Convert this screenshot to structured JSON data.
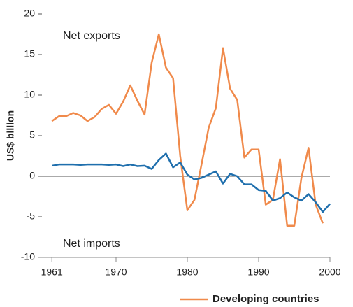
{
  "chart_data": {
    "type": "line",
    "annotations": [
      "Net exports",
      "Net imports"
    ],
    "ylabel": "US$ billion",
    "x": [
      1961,
      1962,
      1963,
      1964,
      1965,
      1966,
      1967,
      1968,
      1969,
      1970,
      1971,
      1972,
      1973,
      1974,
      1975,
      1976,
      1977,
      1978,
      1979,
      1980,
      1981,
      1982,
      1983,
      1984,
      1985,
      1986,
      1987,
      1988,
      1989,
      1990,
      1991,
      1992,
      1993,
      1994,
      1995,
      1996,
      1997,
      1998,
      1999,
      2000
    ],
    "series": [
      {
        "name": "Developing countries",
        "color": "#f08a4b",
        "values": [
          6.8,
          7.4,
          7.4,
          7.8,
          7.5,
          6.8,
          7.3,
          8.3,
          8.8,
          7.7,
          9.2,
          11.2,
          9.3,
          7.6,
          14.0,
          17.5,
          13.4,
          12.1,
          2.5,
          -4.2,
          -2.9,
          1.5,
          6.0,
          8.4,
          15.8,
          10.8,
          9.4,
          2.3,
          3.3,
          3.3,
          -3.5,
          -2.9,
          2.1,
          -6.1,
          -6.1,
          -0.2,
          3.5,
          -3.5,
          -5.8,
          null
        ]
      },
      {
        "color": "#1f6fad",
        "values": [
          1.3,
          1.45,
          1.45,
          1.45,
          1.4,
          1.45,
          1.45,
          1.45,
          1.4,
          1.45,
          1.25,
          1.45,
          1.25,
          1.3,
          0.9,
          2.0,
          2.8,
          1.1,
          1.7,
          0.2,
          -0.4,
          -0.2,
          0.2,
          0.6,
          -0.9,
          0.3,
          0,
          -1.0,
          -1.0,
          -1.7,
          -1.8,
          -3.0,
          -2.7,
          -2.0,
          -2.6,
          -3.0,
          -2.2,
          -3.2,
          -4.4,
          -3.4
        ]
      }
    ],
    "xlim": [
      1960,
      2000
    ],
    "xticks": [
      1961,
      1970,
      1980,
      1990,
      2000
    ],
    "ylim": [
      -10,
      20
    ],
    "yticks": [
      -10,
      -5,
      0,
      5,
      10,
      15,
      20
    ],
    "zero_line": true
  }
}
